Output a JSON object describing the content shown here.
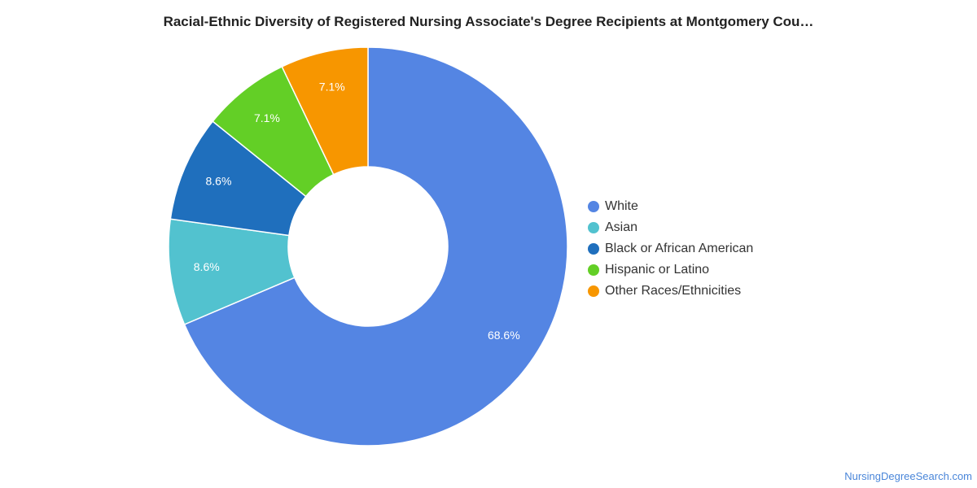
{
  "chart_data": {
    "type": "pie",
    "title": "Racial-Ethnic Diversity of Registered Nursing Associate's Degree Recipients at Montgomery Cou…",
    "donut": true,
    "legend_position": "right",
    "categories": [
      "White",
      "Asian",
      "Black or African American",
      "Hispanic or Latino",
      "Other Races/Ethnicities"
    ],
    "values": [
      68.6,
      8.6,
      8.6,
      7.1,
      7.1
    ],
    "value_labels": [
      "68.6%",
      "8.6%",
      "8.6%",
      "7.1%",
      "7.1%"
    ],
    "colors": [
      "#5485e3",
      "#52c2cf",
      "#1f6fbd",
      "#63cf26",
      "#f79600"
    ]
  },
  "footer": {
    "credit": "NursingDegreeSearch.com"
  }
}
